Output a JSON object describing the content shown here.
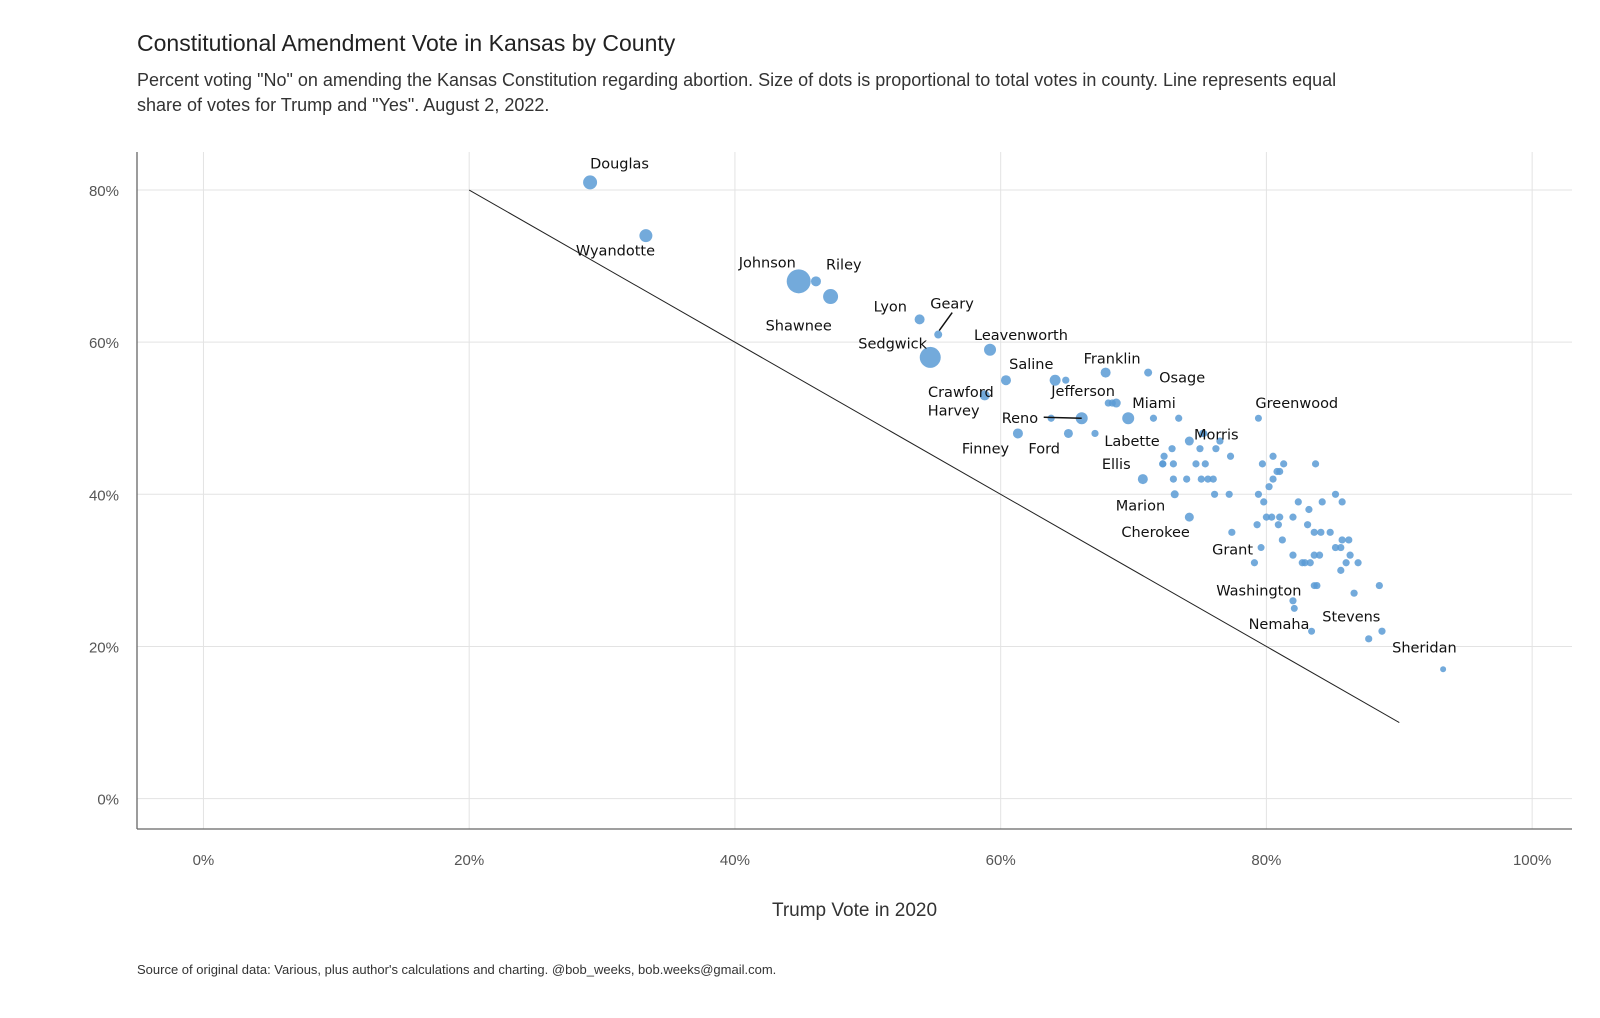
{
  "chart_data": {
    "type": "scatter",
    "title": "Constitutional Amendment Vote in Kansas by County",
    "subtitle": "Percent voting \"No\" on amending the Kansas Constitution regarding abortion. Size of dots is proportional to total votes in county. Line represents equal share of votes for Trump and \"Yes\". August 2, 2022.",
    "xlabel": "Trump Vote in 2020",
    "ylabel": "",
    "caption": "Source of original data: Various, plus author's calculations and charting. @bob_weeks, bob.weeks@gmail.com.",
    "xlim": [
      -5,
      103
    ],
    "ylim": [
      -4,
      85
    ],
    "x_ticks": [
      0,
      20,
      40,
      60,
      80,
      100
    ],
    "x_tick_labels": [
      "0%",
      "20%",
      "40%",
      "60%",
      "80%",
      "100%"
    ],
    "y_ticks": [
      0,
      20,
      40,
      60,
      80
    ],
    "y_tick_labels": [
      "0%",
      "20%",
      "40%",
      "60%",
      "80%"
    ],
    "grid": true,
    "point_color": "#5b9bd5",
    "reference_line": [
      [
        20,
        80
      ],
      [
        90,
        10
      ]
    ],
    "labeled_points": [
      {
        "name": "Douglas",
        "x": 29.1,
        "y": 81,
        "size": 7
      },
      {
        "name": "Wyandotte",
        "x": 33.3,
        "y": 74,
        "size": 6.5
      },
      {
        "name": "Johnson",
        "x": 44.8,
        "y": 68,
        "size": 12
      },
      {
        "name": "Riley",
        "x": 46.1,
        "y": 68,
        "size": 5
      },
      {
        "name": "Shawnee",
        "x": 47.2,
        "y": 66,
        "size": 7.5
      },
      {
        "name": "Lyon",
        "x": 53.9,
        "y": 63,
        "size": 5
      },
      {
        "name": "Geary",
        "x": 55.3,
        "y": 61,
        "size": 4
      },
      {
        "name": "Sedgwick",
        "x": 54.7,
        "y": 58,
        "size": 10.5
      },
      {
        "name": "Leavenworth",
        "x": 59.2,
        "y": 59,
        "size": 6
      },
      {
        "name": "Saline",
        "x": 64.1,
        "y": 55,
        "size": 5.5
      },
      {
        "name": "Crawford",
        "x": 60.4,
        "y": 55,
        "size": 5
      },
      {
        "name": "Harvey",
        "x": 58.8,
        "y": 53,
        "size": 5
      },
      {
        "name": "Franklin",
        "x": 67.9,
        "y": 56,
        "size": 5
      },
      {
        "name": "Osage",
        "x": 71.1,
        "y": 56,
        "size": 4
      },
      {
        "name": "Jefferson",
        "x": 68.7,
        "y": 52,
        "size": 4.5
      },
      {
        "name": "Miami",
        "x": 69.6,
        "y": 50,
        "size": 6
      },
      {
        "name": "Reno",
        "x": 66.1,
        "y": 50,
        "size": 6
      },
      {
        "name": "Morris",
        "x": 75.3,
        "y": 48,
        "size": 3.5
      },
      {
        "name": "Greenwood",
        "x": 79.4,
        "y": 50,
        "size": 3.5
      },
      {
        "name": "Finney",
        "x": 61.3,
        "y": 48,
        "size": 5
      },
      {
        "name": "Ford",
        "x": 65.1,
        "y": 48,
        "size": 4.5
      },
      {
        "name": "Labette",
        "x": 74.2,
        "y": 47,
        "size": 4.5
      },
      {
        "name": "Ellis",
        "x": 70.7,
        "y": 42,
        "size": 5
      },
      {
        "name": "Marion",
        "x": 73.1,
        "y": 40,
        "size": 4
      },
      {
        "name": "Cherokee",
        "x": 74.2,
        "y": 37,
        "size": 4.5
      },
      {
        "name": "Grant",
        "x": 79.6,
        "y": 33,
        "size": 3.5
      },
      {
        "name": "Washington",
        "x": 83.6,
        "y": 28,
        "size": 3.5
      },
      {
        "name": "Stevens",
        "x": 82.1,
        "y": 25,
        "size": 3.5
      },
      {
        "name": "Nemaha",
        "x": 83.4,
        "y": 22,
        "size": 3.5
      },
      {
        "name": "Sheridan",
        "x": 93.3,
        "y": 17,
        "size": 3
      }
    ],
    "other_points": [
      [
        64.9,
        55
      ],
      [
        68.4,
        52
      ],
      [
        68.1,
        52
      ],
      [
        63.8,
        50
      ],
      [
        71.5,
        50
      ],
      [
        73.4,
        50
      ],
      [
        67.1,
        48
      ],
      [
        75.2,
        48
      ],
      [
        76.5,
        47
      ],
      [
        72.9,
        46
      ],
      [
        75.0,
        46
      ],
      [
        76.2,
        46
      ],
      [
        77.3,
        45
      ],
      [
        72.3,
        45
      ],
      [
        80.5,
        45
      ],
      [
        72.2,
        44
      ],
      [
        73.0,
        44
      ],
      [
        74.7,
        44
      ],
      [
        75.4,
        44
      ],
      [
        79.7,
        44
      ],
      [
        81.3,
        44
      ],
      [
        83.7,
        44
      ],
      [
        72.2,
        44
      ],
      [
        81.0,
        43
      ],
      [
        80.8,
        43
      ],
      [
        73.0,
        42
      ],
      [
        74.0,
        42
      ],
      [
        75.1,
        42
      ],
      [
        75.6,
        42
      ],
      [
        76.0,
        42
      ],
      [
        80.5,
        42
      ],
      [
        80.2,
        41
      ],
      [
        76.1,
        40
      ],
      [
        77.2,
        40
      ],
      [
        79.4,
        40
      ],
      [
        85.2,
        40
      ],
      [
        79.8,
        39
      ],
      [
        82.4,
        39
      ],
      [
        84.2,
        39
      ],
      [
        85.7,
        39
      ],
      [
        83.2,
        38
      ],
      [
        80.0,
        37
      ],
      [
        80.4,
        37
      ],
      [
        81.0,
        37
      ],
      [
        82.0,
        37
      ],
      [
        79.3,
        36
      ],
      [
        80.9,
        36
      ],
      [
        83.1,
        36
      ],
      [
        83.6,
        35
      ],
      [
        84.1,
        35
      ],
      [
        84.8,
        35
      ],
      [
        77.4,
        35
      ],
      [
        81.2,
        34
      ],
      [
        85.7,
        34
      ],
      [
        86.2,
        34
      ],
      [
        85.2,
        33
      ],
      [
        85.6,
        33
      ],
      [
        83.6,
        32
      ],
      [
        84.0,
        32
      ],
      [
        86.3,
        32
      ],
      [
        82.0,
        32
      ],
      [
        82.7,
        31
      ],
      [
        83.3,
        31
      ],
      [
        82.9,
        31
      ],
      [
        86.0,
        31
      ],
      [
        86.9,
        31
      ],
      [
        79.1,
        31
      ],
      [
        85.6,
        30
      ],
      [
        83.8,
        28
      ],
      [
        88.5,
        28
      ],
      [
        86.6,
        27
      ],
      [
        82.0,
        26
      ],
      [
        88.7,
        22
      ],
      [
        87.7,
        21
      ]
    ]
  }
}
